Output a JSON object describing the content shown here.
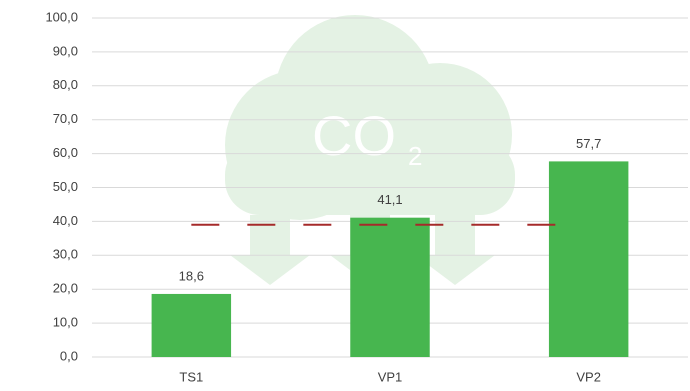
{
  "chart_data": {
    "type": "bar",
    "categories": [
      "TS1",
      "VP1",
      "VP2"
    ],
    "values": [
      18.6,
      41.1,
      57.7
    ],
    "value_labels": [
      "18,6",
      "41,1",
      "57,7"
    ],
    "color": "#47b64f",
    "ylim": [
      0,
      100
    ],
    "yticks": [
      {
        "value": 0,
        "label": "0,0"
      },
      {
        "value": 10,
        "label": "10,0"
      },
      {
        "value": 20,
        "label": "20,0"
      },
      {
        "value": 30,
        "label": "30,0"
      },
      {
        "value": 40,
        "label": "40,0"
      },
      {
        "value": 50,
        "label": "50,0"
      },
      {
        "value": 60,
        "label": "60,0"
      },
      {
        "value": 70,
        "label": "70,0"
      },
      {
        "value": 80,
        "label": "80,0"
      },
      {
        "value": 90,
        "label": "90,0"
      },
      {
        "value": 100,
        "label": "100,0"
      }
    ],
    "grid": true,
    "reference_line": {
      "value": 39,
      "color": "#a52a2a"
    },
    "watermark": {
      "text": "CO",
      "subscript": "2"
    }
  }
}
